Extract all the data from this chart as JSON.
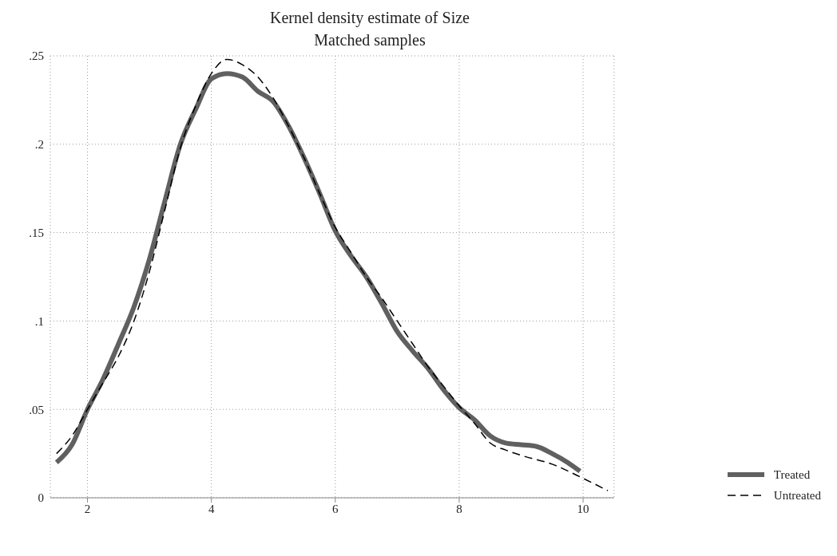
{
  "chart_data": {
    "type": "line",
    "title": "Kernel density estimate of Size",
    "subtitle": "Matched samples",
    "xlim": [
      1.4,
      10.5
    ],
    "xticks": [
      2,
      4,
      6,
      8,
      10
    ],
    "ylim": [
      0,
      0.25
    ],
    "yticks": [
      {
        "value": 0,
        "label": "0"
      },
      {
        "value": 0.05,
        "label": ".05"
      },
      {
        "value": 0.1,
        "label": ".1"
      },
      {
        "value": 0.15,
        "label": ".15"
      },
      {
        "value": 0.2,
        "label": ".2"
      },
      {
        "value": 0.25,
        "label": ".25"
      }
    ],
    "grid": true,
    "legend": "bottom right",
    "marker": "none",
    "series": [
      {
        "name": "Treated",
        "color": "#606060",
        "line_style": "solid",
        "x": [
          1.5,
          1.75,
          2,
          2.25,
          2.5,
          2.75,
          3,
          3.25,
          3.5,
          3.75,
          4,
          4.25,
          4.5,
          4.75,
          5,
          5.25,
          5.5,
          5.75,
          6,
          6.25,
          6.5,
          6.75,
          7,
          7.25,
          7.5,
          7.75,
          8,
          8.25,
          8.5,
          8.75,
          9,
          9.25,
          9.5,
          9.75,
          9.95
        ],
        "values": [
          0.02,
          0.03,
          0.05,
          0.067,
          0.087,
          0.108,
          0.135,
          0.168,
          0.2,
          0.22,
          0.237,
          0.24,
          0.238,
          0.23,
          0.224,
          0.21,
          0.192,
          0.172,
          0.151,
          0.137,
          0.125,
          0.11,
          0.094,
          0.083,
          0.073,
          0.061,
          0.051,
          0.044,
          0.035,
          0.031,
          0.03,
          0.029,
          0.025,
          0.02,
          0.015
        ]
      },
      {
        "name": "Untreated",
        "color": "#000000",
        "line_style": "dashed",
        "x": [
          1.5,
          1.75,
          2,
          2.25,
          2.5,
          2.75,
          3,
          3.25,
          3.5,
          3.75,
          4,
          4.25,
          4.5,
          4.75,
          5,
          5.25,
          5.5,
          5.75,
          6,
          6.25,
          6.5,
          6.75,
          7,
          7.25,
          7.5,
          7.75,
          8,
          8.25,
          8.5,
          8.75,
          9,
          9.5,
          10,
          10.4
        ],
        "values": [
          0.025,
          0.035,
          0.05,
          0.065,
          0.08,
          0.1,
          0.128,
          0.163,
          0.198,
          0.222,
          0.24,
          0.248,
          0.245,
          0.238,
          0.226,
          0.21,
          0.192,
          0.172,
          0.153,
          0.139,
          0.125,
          0.113,
          0.1,
          0.087,
          0.074,
          0.063,
          0.052,
          0.042,
          0.031,
          0.027,
          0.024,
          0.019,
          0.011,
          0.004
        ]
      }
    ]
  }
}
